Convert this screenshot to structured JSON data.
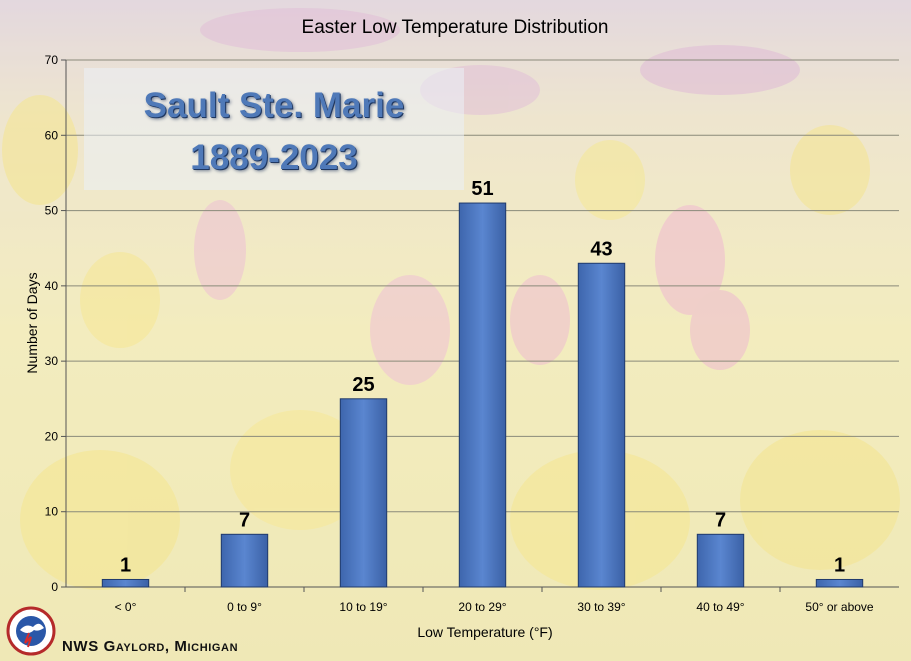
{
  "chart_data": {
    "type": "bar",
    "title": "Easter Low Temperature Distribution",
    "xlabel": "Low Temperature (°F)",
    "ylabel": "Number of Days",
    "categories": [
      "< 0°",
      "0 to 9°",
      "10 to 19°",
      "20 to 29°",
      "30 to 39°",
      "40 to 49°",
      "50° or above"
    ],
    "values": [
      1,
      7,
      25,
      51,
      43,
      7,
      1
    ],
    "data_labels": [
      "1",
      "7",
      "25",
      "51",
      "43",
      "7",
      "1"
    ],
    "ylim": [
      0,
      70
    ],
    "yticks": [
      0,
      10,
      20,
      30,
      40,
      50,
      60,
      70
    ],
    "grid": true,
    "bar_color": "#4a74bf"
  },
  "annotation": {
    "station": "Sault Ste. Marie",
    "years": "1889-2023"
  },
  "footer": {
    "credit": "NWS Gaylord, Michigan",
    "logo_icon": "nws-logo-icon"
  }
}
